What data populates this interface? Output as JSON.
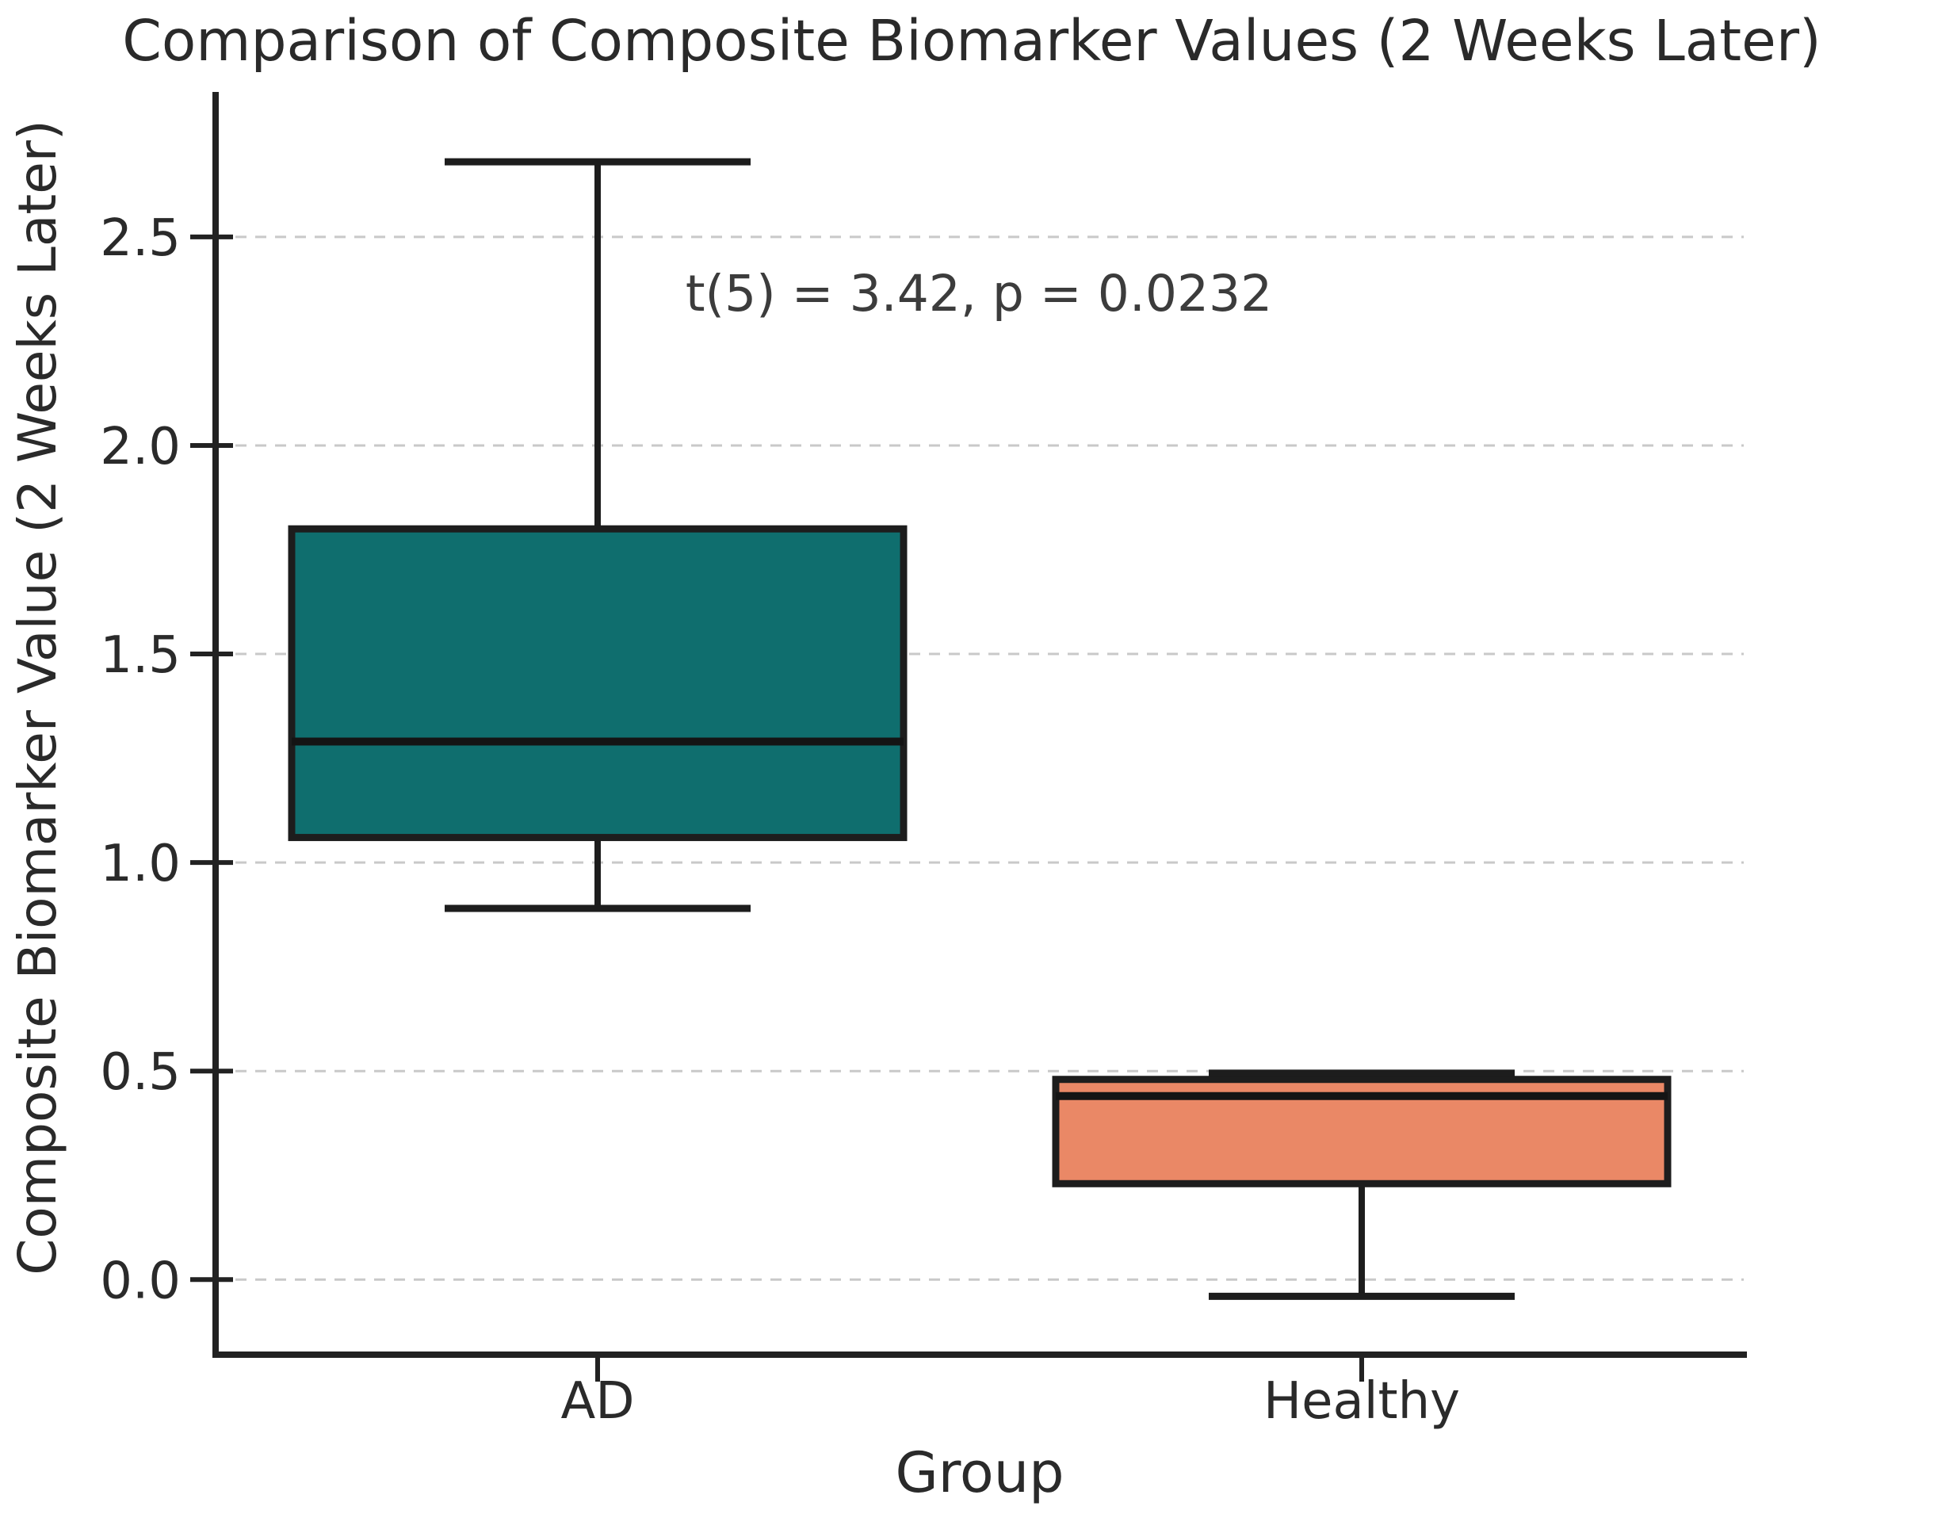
{
  "chart_data": {
    "type": "box",
    "title": "Comparison of Composite Biomarker Values (2 Weeks Later)",
    "xlabel": "Group",
    "ylabel": "Composite Biomarker Value (2 Weeks Later)",
    "annotation": "t(5) = 3.42, p = 0.0232",
    "categories": [
      "AD",
      "Healthy"
    ],
    "series": [
      {
        "group": "AD",
        "whisker_low": 0.89,
        "q1": 1.06,
        "median": 1.29,
        "q3": 1.8,
        "whisker_high": 2.68,
        "fill_color": "#0f6e6e"
      },
      {
        "group": "Healthy",
        "whisker_low": -0.04,
        "q1": 0.23,
        "median": 0.44,
        "q3": 0.48,
        "whisker_high": 0.495,
        "fill_color": "#ea8866"
      }
    ],
    "yticks": [
      0.0,
      0.5,
      1.0,
      1.5,
      2.0,
      2.5
    ],
    "ytick_labels": [
      "0.0",
      "0.5",
      "1.0",
      "1.5",
      "2.0",
      "2.5"
    ],
    "ylim": [
      -0.18,
      2.84
    ],
    "grid": "dashed-horizontal",
    "legend_position": "none",
    "colors": {
      "box_edge": "#1d1d1d",
      "whisker": "#1d1d1d",
      "median_line": "#141414",
      "spine": "#222222",
      "grid": "#c9c9c9",
      "text": "#2a2a2a",
      "annotation_text": "#3c3c3c",
      "background": "#ffffff"
    }
  }
}
